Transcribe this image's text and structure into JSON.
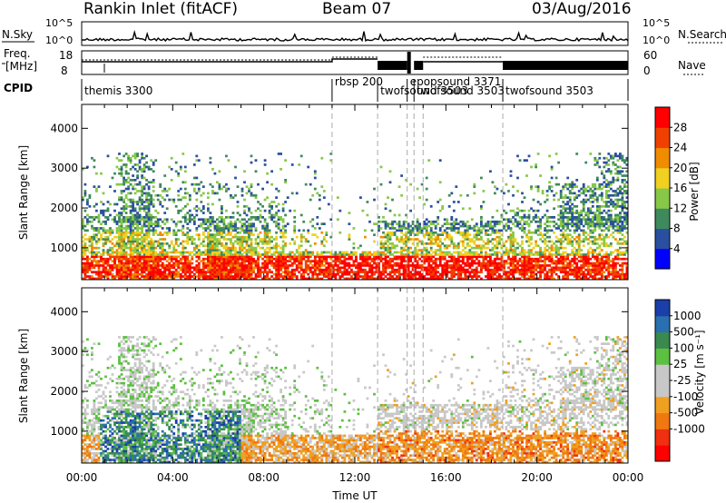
{
  "header": {
    "station": "Rankin Inlet (fitACF)",
    "beam": "Beam 07",
    "date": "03/Aug/2016"
  },
  "top_panel": {
    "nsky_label": "N.Sky",
    "nsky_ticks": [
      "10^5",
      "10^0"
    ],
    "nsearch_label": "N.Search",
    "nsearch_ticks": [
      "10^5",
      "10^0"
    ],
    "freq_label_1": "Freq.",
    "freq_label_2": "[MHz]",
    "freq_ticks": [
      "18",
      "8"
    ],
    "nave_ticks": [
      "60",
      "0"
    ],
    "nave_label": "Nave",
    "cpid_label": "CPID",
    "cpid_programs": [
      {
        "name": "themis 3300",
        "start_hour": 0.0
      },
      {
        "name": "rbsp 200",
        "start_hour": 11.0
      },
      {
        "name": "twofsound 3503",
        "start_hour": 13.0
      },
      {
        "name": "epopsound 3371",
        "start_hour": 14.3
      },
      {
        "name": "twofsound 3503",
        "start_hour": 14.6
      },
      {
        "name": "twofsound 3503",
        "start_hour": 18.5
      }
    ]
  },
  "colors": {
    "power": [
      "#0000ff",
      "#2b4fa0",
      "#3f8a5c",
      "#88c848",
      "#f0d020",
      "#f08c00",
      "#f04000",
      "#ff0000"
    ],
    "velocity": [
      "#1a3fa8",
      "#2a6fb0",
      "#3a8a50",
      "#5cc040",
      "#c8c8c8",
      "#c8c8c8",
      "#f0a020",
      "#f07810",
      "#f03010",
      "#ff0000"
    ]
  },
  "chart_data": [
    {
      "type": "heatmap",
      "name": "power-panel",
      "ylabel": "Slant Range [km]",
      "xlabel": "",
      "x_ticks": [
        "00:00",
        "04:00",
        "08:00",
        "12:00",
        "16:00",
        "20:00",
        "00:00"
      ],
      "y_ticks": [
        "1000",
        "2000",
        "3000",
        "4000"
      ],
      "ylim": [
        200,
        4600
      ],
      "xlim_hours": [
        0,
        24
      ],
      "colorbar_label": "Power [dB]",
      "colorbar_ticks": [
        "4",
        "8",
        "12",
        "16",
        "20",
        "24",
        "28"
      ]
    },
    {
      "type": "heatmap",
      "name": "velocity-panel",
      "ylabel": "Slant Range [km]",
      "xlabel": "Time UT",
      "x_ticks": [
        "00:00",
        "04:00",
        "08:00",
        "12:00",
        "16:00",
        "20:00",
        "00:00"
      ],
      "y_ticks": [
        "1000",
        "2000",
        "3000",
        "4000"
      ],
      "ylim": [
        200,
        4600
      ],
      "xlim_hours": [
        0,
        24
      ],
      "colorbar_label": "Velocity [m s⁻¹]",
      "colorbar_ticks": [
        "1000",
        "500",
        "100",
        "25",
        "-25",
        "-100",
        "-500",
        "-1000"
      ]
    }
  ]
}
